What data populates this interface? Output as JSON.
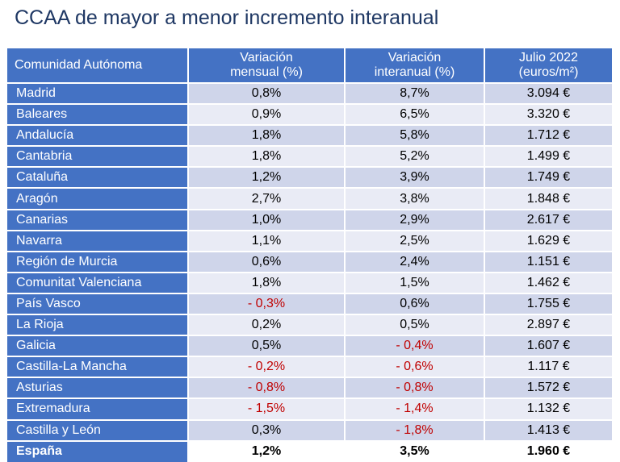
{
  "title": "CCAA de mayor a menor incremento interanual",
  "table": {
    "headers": [
      [
        "Comunidad Autónoma"
      ],
      [
        "Variación",
        "mensual (%)"
      ],
      [
        "Variación",
        "interanual (%)"
      ],
      [
        "Julio 2022",
        "(euros/m²)"
      ]
    ],
    "rows": [
      [
        "Madrid",
        "0,8%",
        "8,7%",
        "3.094 €"
      ],
      [
        "Baleares",
        "0,9%",
        "6,5%",
        "3.320 €"
      ],
      [
        "Andalucía",
        "1,8%",
        "5,8%",
        "1.712 €"
      ],
      [
        "Cantabria",
        "1,8%",
        "5,2%",
        "1.499 €"
      ],
      [
        "Cataluña",
        "1,2%",
        "3,9%",
        "1.749 €"
      ],
      [
        "Aragón",
        "2,7%",
        "3,8%",
        "1.848 €"
      ],
      [
        "Canarias",
        "1,0%",
        "2,9%",
        "2.617 €"
      ],
      [
        "Navarra",
        "1,1%",
        "2,5%",
        "1.629 €"
      ],
      [
        "Región de Murcia",
        "0,6%",
        "2,4%",
        "1.151 €"
      ],
      [
        "Comunitat Valenciana",
        "1,8%",
        "1,5%",
        "1.462 €"
      ],
      [
        "País Vasco",
        "- 0,3%",
        "0,6%",
        "1.755 €"
      ],
      [
        "La Rioja",
        "0,2%",
        "0,5%",
        "2.897 €"
      ],
      [
        "Galicia",
        "0,5%",
        "- 0,4%",
        "1.607 €"
      ],
      [
        "Castilla-La Mancha",
        "- 0,2%",
        "- 0,6%",
        "1.117 €"
      ],
      [
        "Asturias",
        "- 0,8%",
        "- 0,8%",
        "1.572 €"
      ],
      [
        "Extremadura",
        "- 1,5%",
        "- 1,4%",
        "1.132 €"
      ],
      [
        "Castilla y León",
        "0,3%",
        "- 1,8%",
        "1.413 €"
      ]
    ],
    "total": [
      "España",
      "1,2%",
      "3,5%",
      "1.960 €"
    ]
  },
  "colors": {
    "header_blue": "#4472c4",
    "title_navy": "#1f3864",
    "negative_red": "#c00000",
    "band_dark": "#cfd5ea",
    "band_light": "#e9ebf5"
  }
}
